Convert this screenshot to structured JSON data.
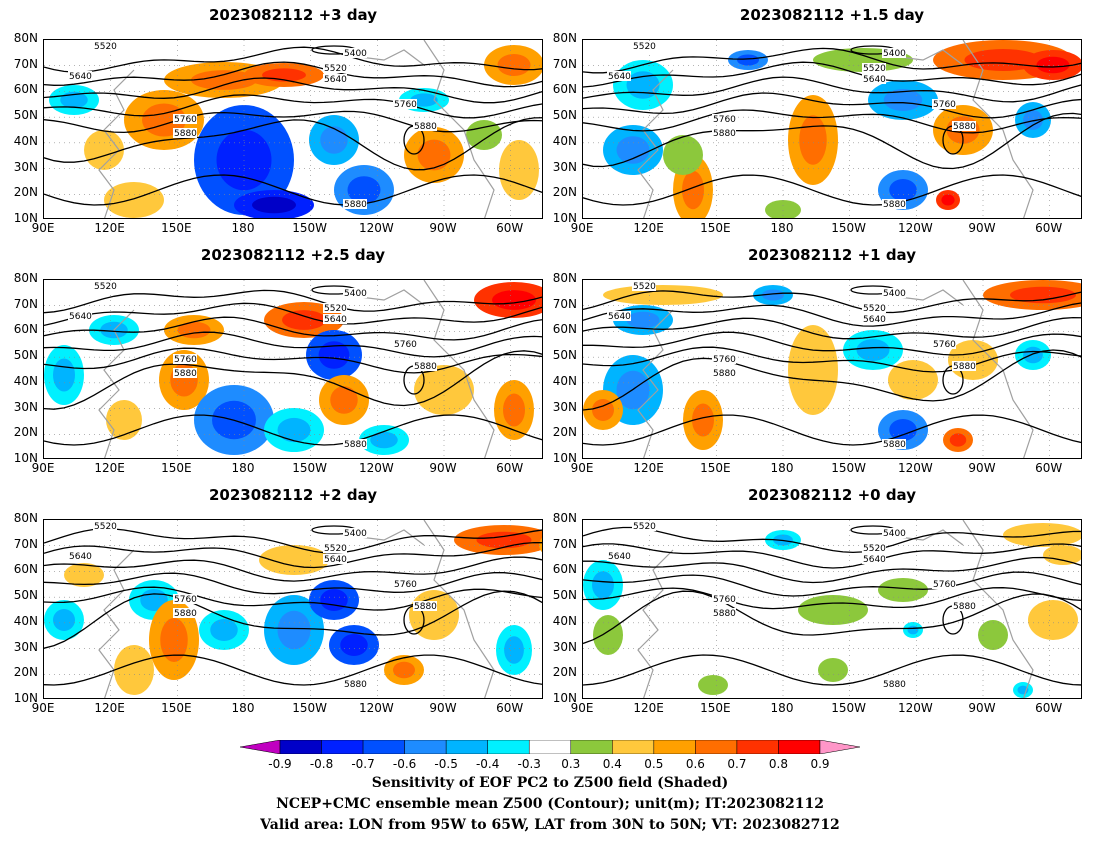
{
  "panels": [
    {
      "title": "2023082112 +3 day"
    },
    {
      "title": "2023082112 +1.5 day"
    },
    {
      "title": "2023082112 +2.5 day"
    },
    {
      "title": "2023082112 +1 day"
    },
    {
      "title": "2023082112 +2 day"
    },
    {
      "title": "2023082112 +0 day"
    }
  ],
  "axes": {
    "lat_labels": [
      "80N",
      "70N",
      "60N",
      "50N",
      "40N",
      "30N",
      "20N",
      "10N"
    ],
    "lon_labels": [
      "90E",
      "120E",
      "150E",
      "180",
      "150W",
      "120W",
      "90W",
      "60W"
    ]
  },
  "contour_labels": [
    "5400",
    "5520",
    "5640",
    "5760",
    "5880"
  ],
  "colorbar": {
    "ticks": [
      "-0.9",
      "-0.8",
      "-0.7",
      "-0.6",
      "-0.5",
      "-0.4",
      "-0.3",
      "0.3",
      "0.4",
      "0.5",
      "0.6",
      "0.7",
      "0.8",
      "0.9"
    ],
    "colors": [
      "#c000c0",
      "#0000c8",
      "#0020ff",
      "#0050ff",
      "#1e8cff",
      "#00b4ff",
      "#00f0ff",
      "#ffffff",
      "#8cc83c",
      "#ffc83c",
      "#ffa000",
      "#ff6e00",
      "#ff3200",
      "#ff0000",
      "#ff96c8"
    ]
  },
  "footer": {
    "line1": "Sensitivity of EOF PC2 to Z500 field (Shaded)",
    "line2": "NCEP+CMC ensemble mean Z500 (Contour); unit(m); IT:2023082112",
    "line3": "Valid area: LON from 95W to 65W, LAT from 30N to 50N; VT: 2023082712"
  }
}
